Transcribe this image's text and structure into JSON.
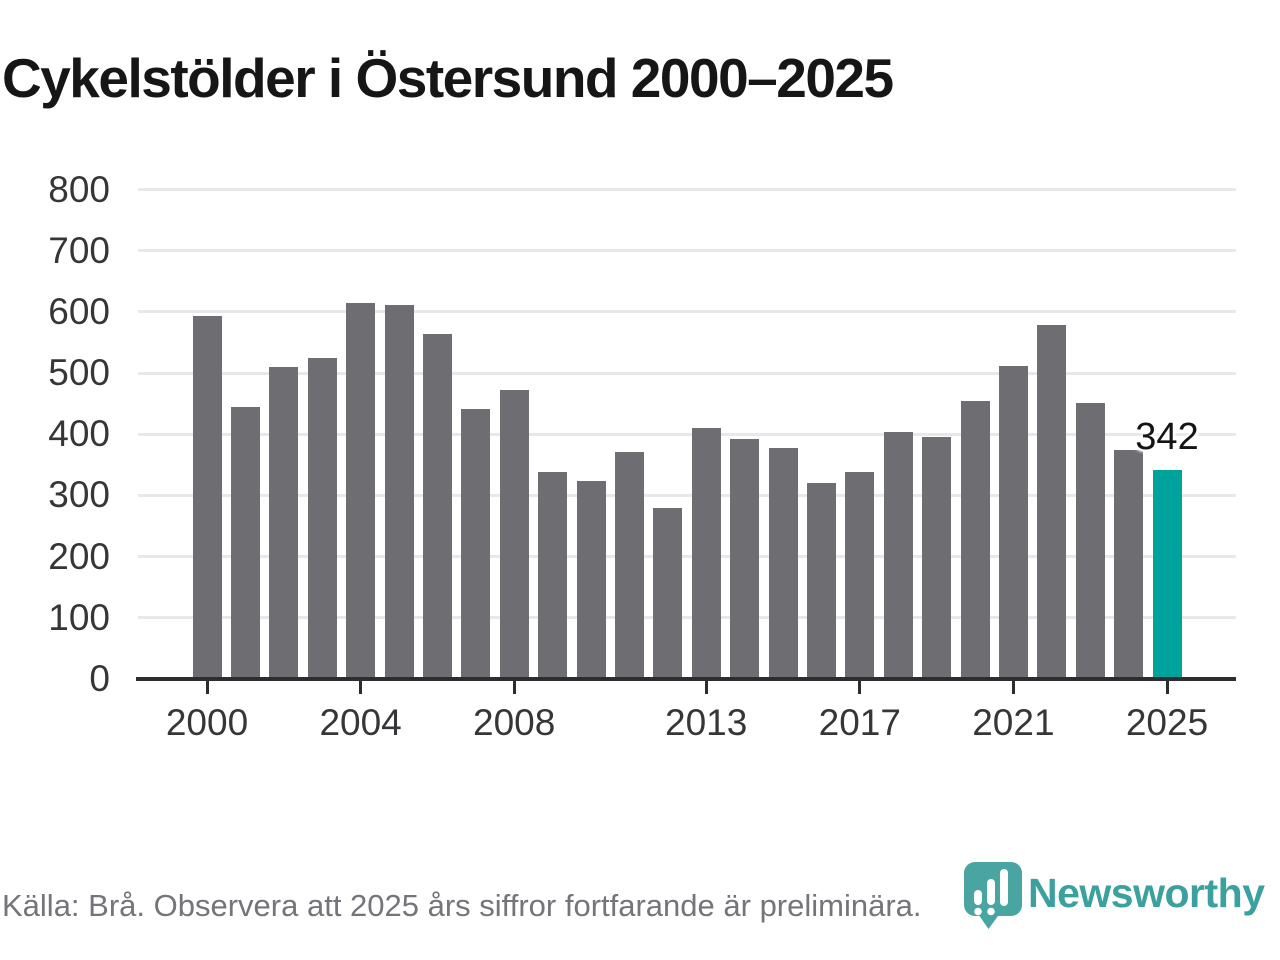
{
  "title": "Cykelstölder i Östersund 2000–2025",
  "chart_data": {
    "type": "bar",
    "title": "Cykelstölder i Östersund 2000–2025",
    "categories": [
      2000,
      2001,
      2002,
      2003,
      2004,
      2005,
      2006,
      2007,
      2008,
      2009,
      2010,
      2011,
      2012,
      2013,
      2014,
      2015,
      2016,
      2017,
      2018,
      2019,
      2020,
      2021,
      2022,
      2023,
      2024,
      2025
    ],
    "values": [
      593,
      445,
      510,
      525,
      614,
      612,
      564,
      441,
      472,
      339,
      324,
      371,
      279,
      410,
      392,
      377,
      321,
      339,
      403,
      395,
      455,
      512,
      579,
      452,
      375,
      342
    ],
    "highlight_index": 25,
    "annotation": {
      "text": "342",
      "index": 25
    },
    "ylim": [
      0,
      800
    ],
    "yticks": [
      0,
      100,
      200,
      300,
      400,
      500,
      600,
      700,
      800
    ],
    "xticks": [
      2000,
      2004,
      2008,
      2013,
      2017,
      2021,
      2025
    ],
    "grid": true,
    "legend": false,
    "bar_color": "#6d6d72",
    "highlight_color": "#00a39b"
  },
  "colors": {
    "title": "#161616",
    "bar": "#6d6d72",
    "highlight": "#00a39b",
    "grid": "#e8e8ea",
    "axis": "#2d2d30",
    "tick_label": "#363639",
    "footer_text": "#74747a",
    "logo_pin": "#48a5a1",
    "logo_text": "#3ba19e",
    "logo_glyph": "#ffffff"
  },
  "footer": {
    "source_text": "Källa: Brå. Observera att 2025 års siffror fortfarande är preliminära."
  },
  "branding": {
    "name": "Newsworthy",
    "logo_icon": "bar-chart-pin-icon"
  }
}
